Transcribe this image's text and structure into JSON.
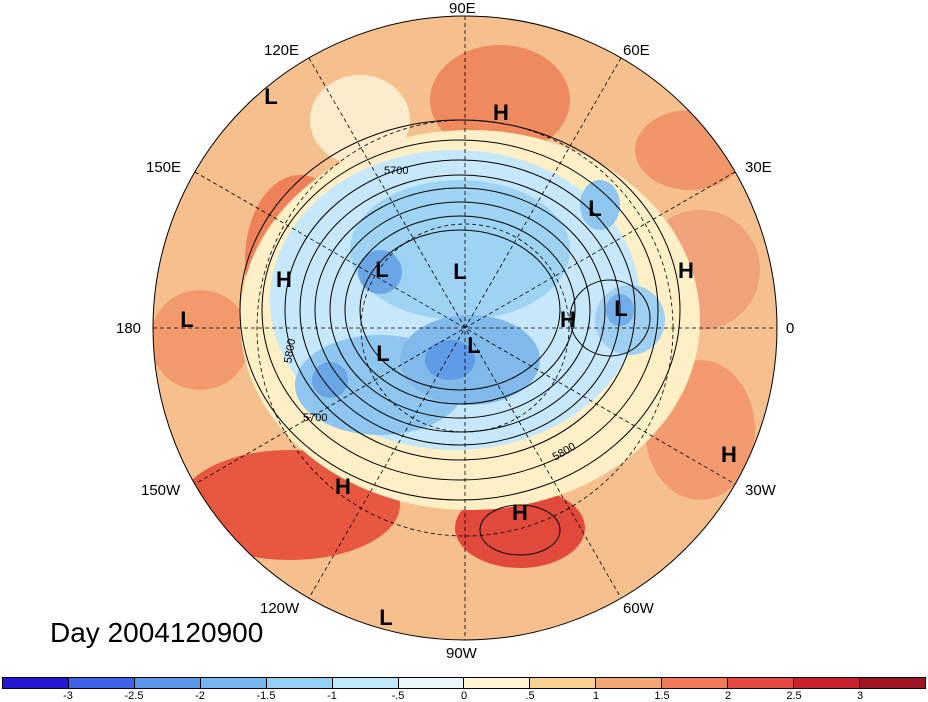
{
  "title": "Day 2004120900",
  "lon_labels": {
    "e90": "90E",
    "e120": "120E",
    "e60": "60E",
    "e150": "150E",
    "e30": "30E",
    "w180": "180",
    "zero": "0",
    "w150": "150W",
    "w30": "30W",
    "w120": "120W",
    "w60": "60W",
    "w90": "90W"
  },
  "contour_labels": [
    "5700",
    "5800",
    "5800",
    "5700",
    "5800"
  ],
  "pressure_centers": [
    {
      "name": "high-center",
      "label": "H"
    },
    {
      "name": "low-center",
      "label": "L"
    }
  ],
  "colorbar": {
    "ticks": [
      "-3",
      "-2.5",
      "-2",
      "-1.5",
      "-1",
      "-.5",
      "0",
      ".5",
      "1",
      "1.5",
      "2",
      "2.5",
      "3"
    ],
    "colors": [
      "#2418d6",
      "#3f63e8",
      "#5a96ec",
      "#74b6f0",
      "#95d0f5",
      "#c1e8f9",
      "#e8f7fc",
      "#fff6d6",
      "#f8d08f",
      "#f5a773",
      "#ee7a56",
      "#e54a42",
      "#c8232d",
      "#9f1423"
    ]
  },
  "colors": {
    "warm": "#f3a276",
    "hot": "#e5503e",
    "cool": "#9fd0f1",
    "cold": "#5f9de6",
    "neutral": "#fdf0c9"
  }
}
